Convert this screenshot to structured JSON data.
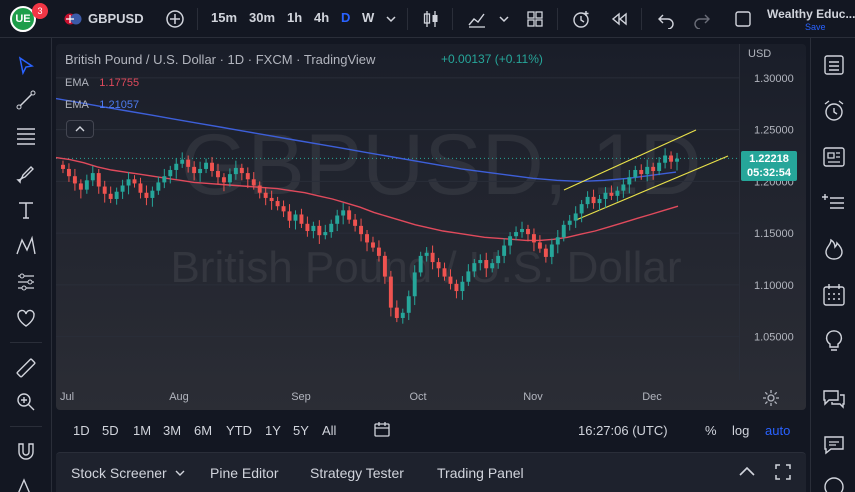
{
  "header": {
    "notification_count": "3",
    "symbol": "GBPUSD",
    "intervals": [
      "15m",
      "30m",
      "1h",
      "4h",
      "D",
      "W"
    ],
    "active_interval": "D",
    "account_name": "Wealthy Educ...",
    "save_label": "Save"
  },
  "legend": {
    "title": "British Pound / U.S. Dollar · 1D · FXCM · TradingView",
    "change": "+0.00137 (+0.11%)",
    "ema1_label": "EMA",
    "ema1_value": "1.17755",
    "ema2_label": "EMA",
    "ema2_value": "1.21057",
    "collapse_icon": "chevron-up-icon"
  },
  "watermark": {
    "symbol": "GBPUSD, 1D",
    "name": "British Pound / U.S. Dollar"
  },
  "price_axis": {
    "currency": "USD",
    "current_price": "1.22218",
    "countdown": "05:32:54"
  },
  "range_bar": {
    "ranges": [
      "1D",
      "5D",
      "1M",
      "3M",
      "6M",
      "YTD",
      "1Y",
      "5Y",
      "All"
    ],
    "time": "16:27:06 (UTC)",
    "percent_label": "%",
    "log_label": "log",
    "auto_label": "auto"
  },
  "bottom_panel": {
    "tabs": [
      "Stock Screener",
      "Pine Editor",
      "Strategy Tester",
      "Trading Panel"
    ]
  },
  "colors": {
    "up": "#26a69a",
    "down": "#ef5350",
    "ema_fast": "#e04a5c",
    "ema_slow": "#3d5fd9",
    "channel": "#e8e04a",
    "accent": "#2962ff"
  },
  "chart_data": {
    "type": "candlestick",
    "title": "British Pound / U.S. Dollar · 1D · FXCM",
    "x_ticks": [
      "Jul",
      "Aug",
      "Sep",
      "Oct",
      "Nov",
      "Dec"
    ],
    "y_ticks": [
      1.3,
      1.25,
      1.2,
      1.15,
      1.1,
      1.05
    ],
    "y_tick_labels": [
      "1.30000",
      "1.25000",
      "1.20000",
      "1.15000",
      "1.10000",
      "1.05000"
    ],
    "ylim": [
      1.01,
      1.325
    ],
    "close_series": [
      1.212,
      1.205,
      1.198,
      1.192,
      1.201,
      1.208,
      1.195,
      1.188,
      1.183,
      1.19,
      1.196,
      1.202,
      1.198,
      1.189,
      1.184,
      1.191,
      1.199,
      1.205,
      1.211,
      1.217,
      1.221,
      1.214,
      1.208,
      1.212,
      1.218,
      1.21,
      1.204,
      1.199,
      1.207,
      1.213,
      1.208,
      1.202,
      1.196,
      1.189,
      1.184,
      1.181,
      1.176,
      1.171,
      1.162,
      1.168,
      1.159,
      1.152,
      1.157,
      1.148,
      1.151,
      1.159,
      1.167,
      1.172,
      1.163,
      1.157,
      1.149,
      1.141,
      1.136,
      1.128,
      1.108,
      1.078,
      1.068,
      1.073,
      1.089,
      1.112,
      1.128,
      1.131,
      1.122,
      1.116,
      1.108,
      1.101,
      1.094,
      1.103,
      1.113,
      1.121,
      1.124,
      1.116,
      1.121,
      1.128,
      1.138,
      1.147,
      1.151,
      1.154,
      1.149,
      1.141,
      1.135,
      1.127,
      1.139,
      1.146,
      1.158,
      1.162,
      1.169,
      1.178,
      1.185,
      1.179,
      1.183,
      1.189,
      1.186,
      1.191,
      1.197,
      1.204,
      1.211,
      1.207,
      1.214,
      1.21,
      1.218,
      1.225,
      1.219,
      1.222
    ],
    "ema_fast_series": [
      1.223,
      1.221,
      1.218,
      1.214,
      1.211,
      1.209,
      1.207,
      1.205,
      1.203,
      1.201,
      1.199,
      1.198,
      1.197,
      1.196,
      1.195,
      1.194,
      1.193,
      1.191,
      1.189,
      1.186,
      1.183,
      1.179,
      1.175,
      1.17,
      1.166,
      1.162,
      1.158,
      1.155,
      1.152,
      1.15,
      1.148,
      1.146,
      1.145,
      1.144,
      1.143,
      1.143,
      1.144,
      1.146,
      1.149,
      1.152,
      1.156,
      1.16,
      1.164,
      1.168,
      1.172,
      1.176
    ],
    "ema_slow_series": [
      1.28,
      1.276,
      1.272,
      1.268,
      1.264,
      1.26,
      1.256,
      1.252,
      1.248,
      1.244,
      1.24,
      1.236,
      1.232,
      1.228,
      1.224,
      1.22,
      1.216,
      1.212,
      1.209,
      1.206,
      1.203,
      1.201,
      1.2,
      1.201,
      1.203,
      1.206,
      1.209
    ],
    "ema_fast_value": 1.17755,
    "ema_slow_value": 1.21057,
    "current_price": 1.22218
  }
}
